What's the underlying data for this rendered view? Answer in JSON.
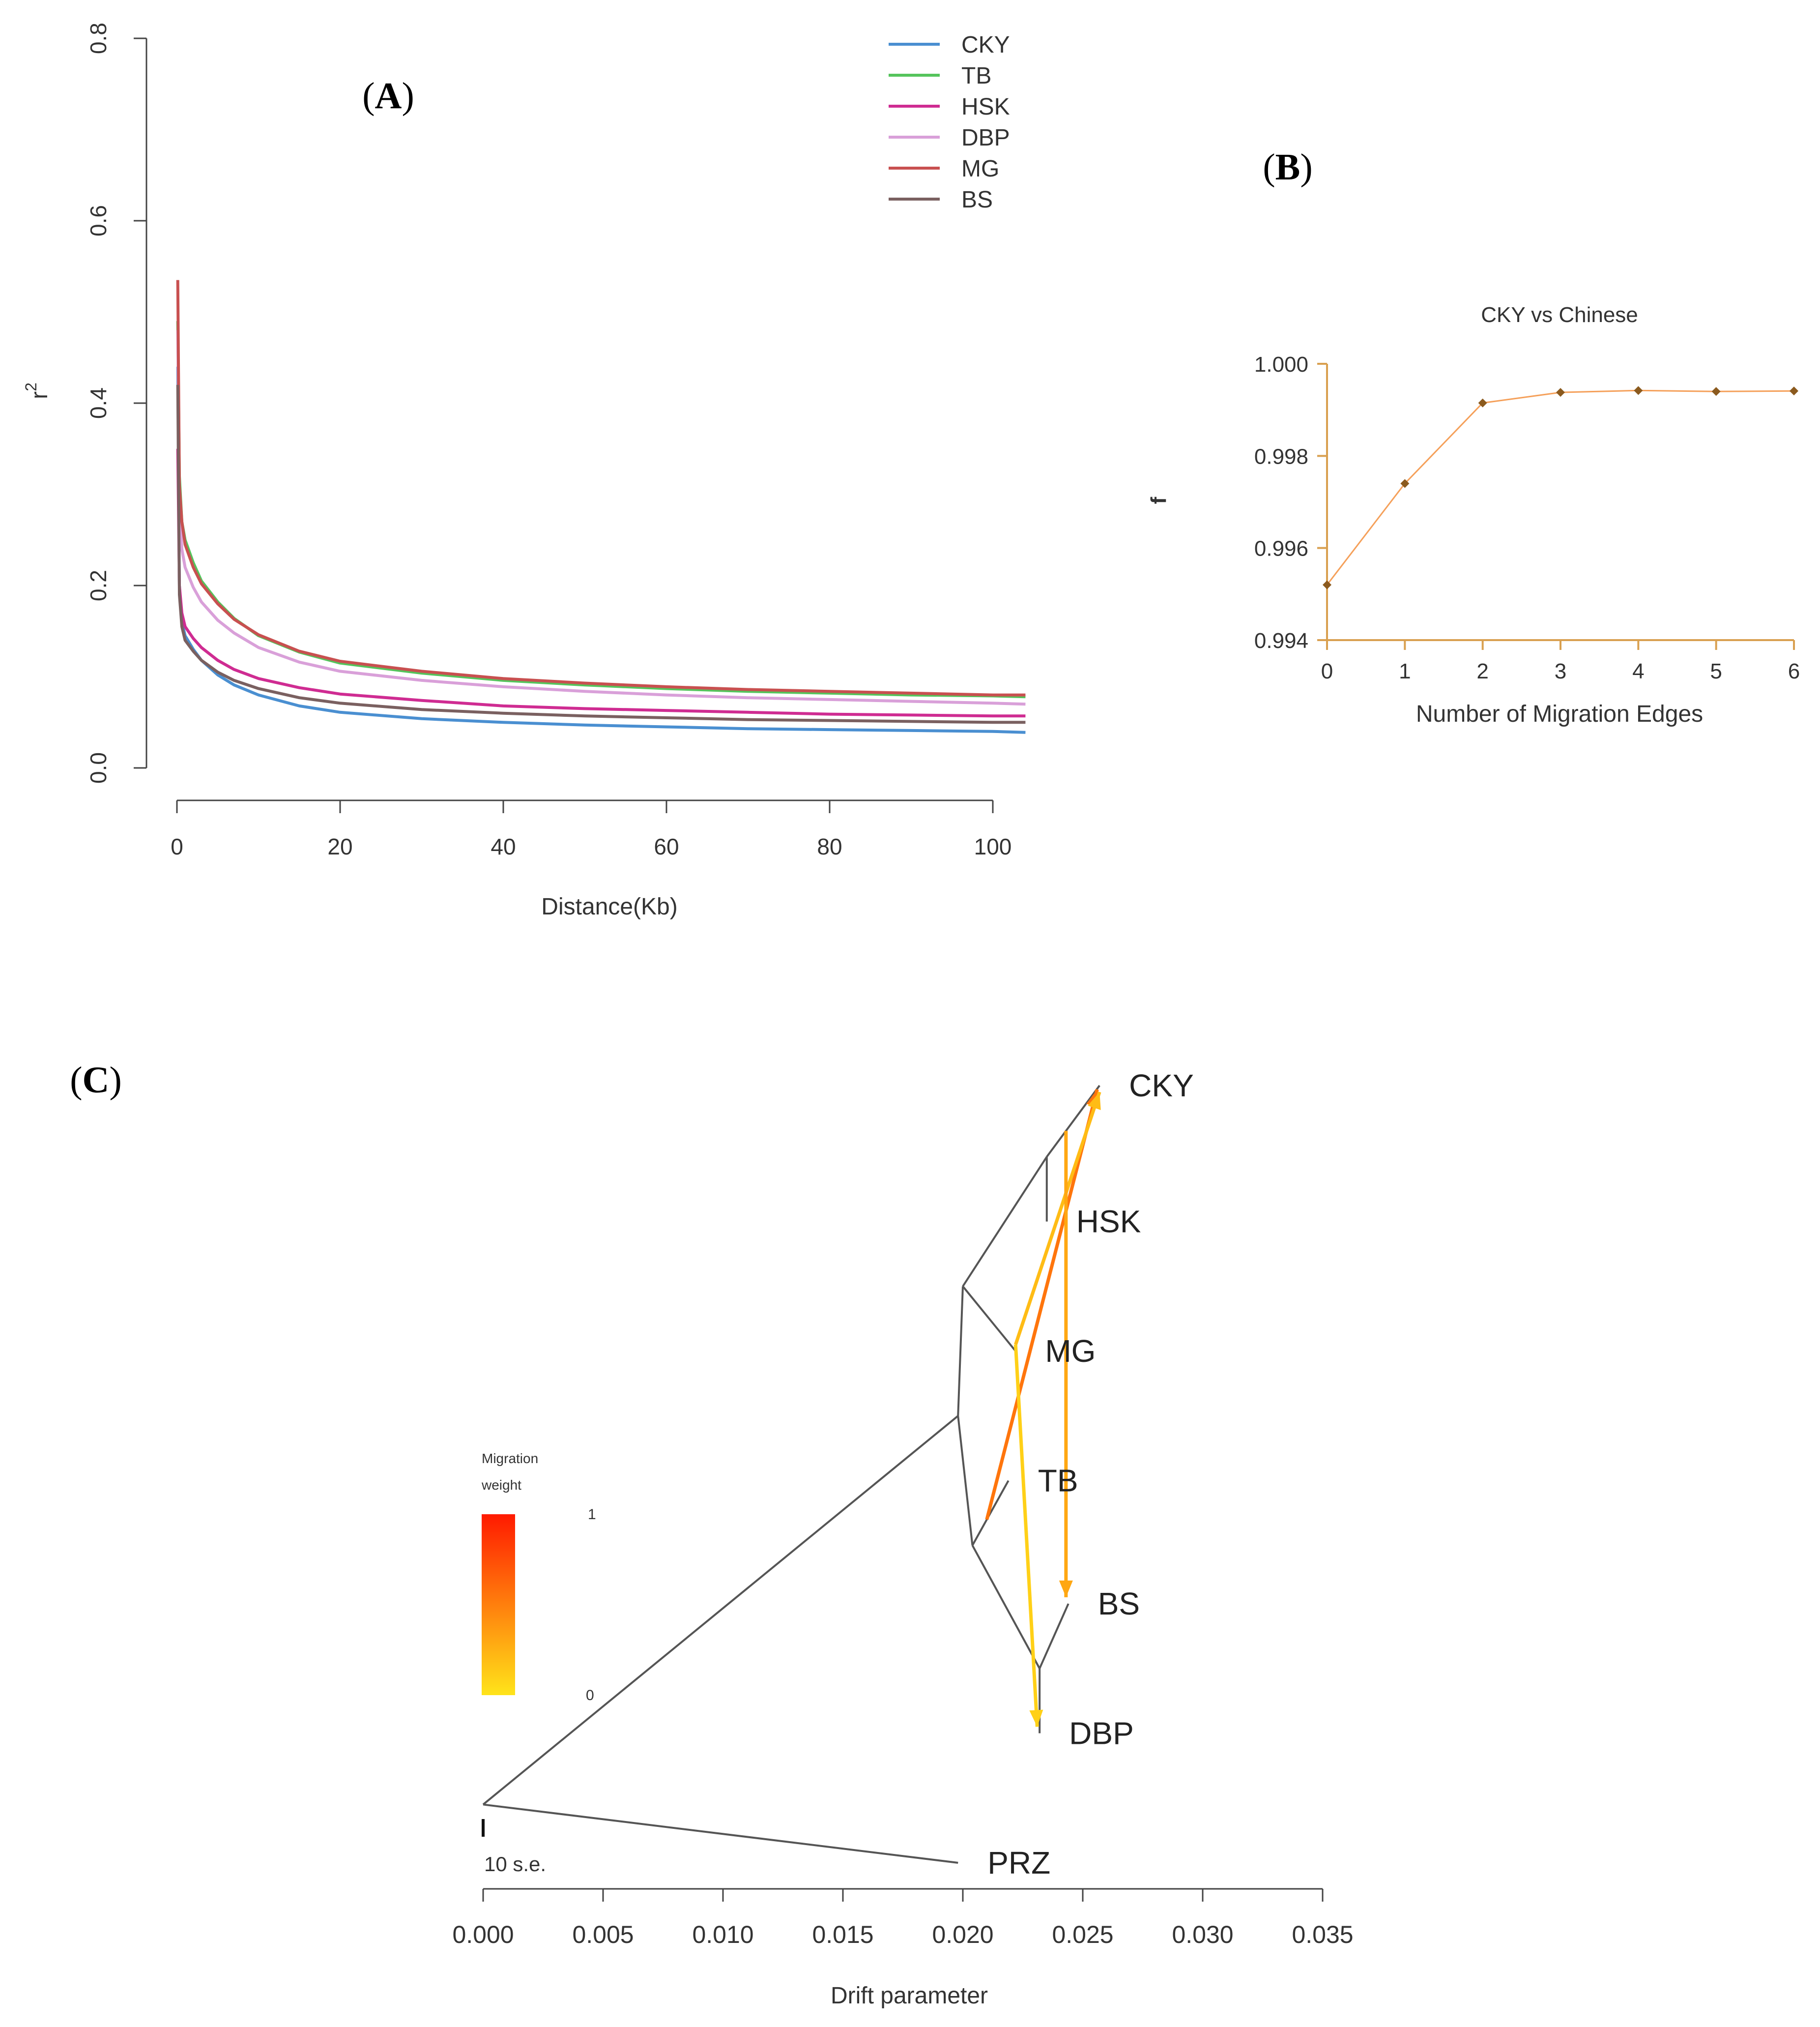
{
  "panel_labels": {
    "a": "A",
    "b": "B",
    "c": "C"
  },
  "chart_data": [
    {
      "panel": "A",
      "type": "line",
      "title": "",
      "xlabel": "Distance(Kb)",
      "ylabel": "r",
      "ylabel_superscript": "2",
      "xlim": [
        0,
        104
      ],
      "ylim": [
        0,
        0.8
      ],
      "xticks": [
        0,
        20,
        40,
        60,
        80,
        100
      ],
      "yticks": [
        0.0,
        0.2,
        0.4,
        0.6,
        0.8
      ],
      "ytick_labels": [
        "0.0",
        "0.2",
        "0.4",
        "0.6",
        "0.8"
      ],
      "legend_position": "top-right",
      "x": [
        0.1,
        0.3,
        0.6,
        1,
        2,
        3,
        5,
        7,
        10,
        15,
        20,
        30,
        40,
        50,
        60,
        70,
        80,
        90,
        100,
        104
      ],
      "series": [
        {
          "name": "CKY",
          "color": "#4a8fd1",
          "values": [
            0.44,
            0.2,
            0.16,
            0.145,
            0.13,
            0.118,
            0.102,
            0.091,
            0.08,
            0.068,
            0.061,
            0.054,
            0.05,
            0.047,
            0.045,
            0.043,
            0.042,
            0.041,
            0.04,
            0.039
          ]
        },
        {
          "name": "TB",
          "color": "#55c45c",
          "values": [
            0.49,
            0.32,
            0.27,
            0.25,
            0.225,
            0.205,
            0.182,
            0.164,
            0.145,
            0.127,
            0.115,
            0.104,
            0.096,
            0.091,
            0.087,
            0.084,
            0.082,
            0.08,
            0.079,
            0.078
          ]
        },
        {
          "name": "HSK",
          "color": "#cf2c92",
          "values": [
            0.35,
            0.2,
            0.17,
            0.155,
            0.142,
            0.132,
            0.118,
            0.108,
            0.098,
            0.088,
            0.081,
            0.074,
            0.068,
            0.065,
            0.063,
            0.061,
            0.059,
            0.058,
            0.057,
            0.057
          ]
        },
        {
          "name": "DBP",
          "color": "#d9a0d9",
          "values": [
            0.48,
            0.29,
            0.24,
            0.22,
            0.198,
            0.182,
            0.162,
            0.148,
            0.132,
            0.116,
            0.106,
            0.096,
            0.089,
            0.084,
            0.08,
            0.077,
            0.075,
            0.073,
            0.071,
            0.07
          ]
        },
        {
          "name": "MG",
          "color": "#c85050",
          "values": [
            0.535,
            0.31,
            0.27,
            0.245,
            0.22,
            0.202,
            0.18,
            0.163,
            0.146,
            0.128,
            0.117,
            0.106,
            0.098,
            0.093,
            0.089,
            0.086,
            0.084,
            0.082,
            0.08,
            0.08
          ]
        },
        {
          "name": "BS",
          "color": "#7a6060",
          "values": [
            0.42,
            0.19,
            0.155,
            0.14,
            0.128,
            0.118,
            0.105,
            0.096,
            0.087,
            0.077,
            0.071,
            0.064,
            0.06,
            0.057,
            0.055,
            0.053,
            0.052,
            0.051,
            0.05,
            0.05
          ]
        }
      ]
    },
    {
      "panel": "B",
      "type": "line",
      "title": "CKY vs Chinese",
      "xlabel": "Number of Migration Edges",
      "ylabel": "f",
      "xlim": [
        0,
        6
      ],
      "ylim": [
        0.994,
        1.0
      ],
      "xticks": [
        0,
        1,
        2,
        3,
        4,
        5,
        6
      ],
      "yticks": [
        0.994,
        0.996,
        0.998,
        1.0
      ],
      "ytick_labels": [
        "0.994",
        "0.996",
        "0.998",
        "1.000"
      ],
      "x": [
        0,
        1,
        2,
        3,
        4,
        5,
        6
      ],
      "series": [
        {
          "name": "f",
          "color": "#f5a05a",
          "marker_color": "#8b5a1e",
          "values": [
            0.9952,
            0.9974,
            0.99915,
            0.99938,
            0.99942,
            0.9994,
            0.99941
          ]
        }
      ],
      "axis_color": "#d9a050"
    },
    {
      "panel": "C",
      "type": "tree",
      "xlabel": "Drift parameter",
      "xlim": [
        0,
        0.035
      ],
      "xticks": [
        0.0,
        0.005,
        0.01,
        0.015,
        0.02,
        0.025,
        0.03,
        0.035
      ],
      "xtick_labels": [
        "0.000",
        "0.005",
        "0.010",
        "0.015",
        "0.020",
        "0.025",
        "0.030",
        "0.035"
      ],
      "scale_bar_label": "10 s.e.",
      "legend": {
        "title_line1": "Migration",
        "title_line2": "weight",
        "max_label": "1",
        "min_label": "0",
        "color_high": "#ff1a00",
        "color_low": "#ffe41a"
      },
      "leaves": [
        "CKY",
        "HSK",
        "MG",
        "TB",
        "BS",
        "DBP",
        "PRZ"
      ],
      "nodes": {
        "root": {
          "drift": 0.0,
          "row": 5.55
        },
        "n1": {
          "drift": 0.0198,
          "row": 2.55
        },
        "n2": {
          "drift": 0.02,
          "row": 1.55
        },
        "n3": {
          "drift": 0.0235,
          "row": 0.55
        },
        "n4": {
          "drift": 0.0204,
          "row": 3.55
        },
        "n5": {
          "drift": 0.0232,
          "row": 4.5
        }
      },
      "tips": {
        "CKY": {
          "drift": 0.0257,
          "row": 0
        },
        "HSK": {
          "drift": 0.0235,
          "row": 1.05
        },
        "MG": {
          "drift": 0.0222,
          "row": 2.05
        },
        "TB": {
          "drift": 0.0219,
          "row": 3.05
        },
        "BS": {
          "drift": 0.0244,
          "row": 4.0
        },
        "DBP": {
          "drift": 0.0232,
          "row": 5.0
        },
        "PRZ": {
          "drift": 0.0198,
          "row": 6.0
        }
      },
      "edges": [
        [
          "root",
          "n1"
        ],
        [
          "root",
          "PRZ"
        ],
        [
          "n1",
          "n2"
        ],
        [
          "n1",
          "n4"
        ],
        [
          "n2",
          "n3"
        ],
        [
          "n2",
          "MG"
        ],
        [
          "n3",
          "CKY"
        ],
        [
          "n3",
          "HSK"
        ],
        [
          "n4",
          "TB"
        ],
        [
          "n4",
          "n5"
        ],
        [
          "n5",
          "BS"
        ],
        [
          "n5",
          "DBP"
        ]
      ],
      "migrations": [
        {
          "from": "toward MG branch",
          "to": "CKY",
          "weight": 0.55,
          "from_drift": 0.021,
          "from_row": 3.35,
          "to_drift": 0.0256,
          "to_row": 0.03
        },
        {
          "from": "MG branch",
          "to": "CKY",
          "weight": 0.2,
          "from_drift": 0.0222,
          "from_row": 2.0,
          "to_drift": 0.0257,
          "to_row": 0.05
        },
        {
          "from": "MG branch",
          "to": "DBP",
          "weight": 0.1,
          "from_drift": 0.0222,
          "from_row": 2.0,
          "to_drift": 0.0231,
          "to_row": 4.95
        },
        {
          "from": "CKY branch",
          "to": "BS",
          "weight": 0.3,
          "from_drift": 0.0243,
          "from_row": 0.35,
          "to_drift": 0.0243,
          "to_row": 3.95
        }
      ]
    }
  ]
}
